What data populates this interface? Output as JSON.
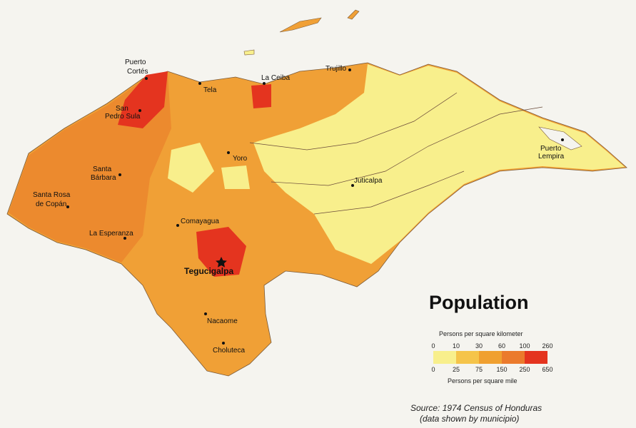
{
  "map": {
    "title": "Population",
    "cities": [
      {
        "lines": [
          "Puerto",
          "Cortés"
        ]
      },
      {
        "lines": [
          "Tela"
        ]
      },
      {
        "lines": [
          "La Ceiba"
        ]
      },
      {
        "lines": [
          "Trujillo"
        ]
      },
      {
        "lines": [
          "San",
          "Pedro Sula"
        ]
      },
      {
        "lines": [
          "Yoro"
        ]
      },
      {
        "lines": [
          "Santa",
          "Bárbara"
        ]
      },
      {
        "lines": [
          "Santa Rosa",
          "de Copán"
        ]
      },
      {
        "lines": [
          "Juticalpa"
        ]
      },
      {
        "lines": [
          "Puerto",
          "Lempira"
        ]
      },
      {
        "lines": [
          "Comayagua"
        ]
      },
      {
        "lines": [
          "La Esperanza"
        ]
      },
      {
        "lines": [
          "Tegucigalpa"
        ]
      },
      {
        "lines": [
          "Nacaome"
        ]
      },
      {
        "lines": [
          "Choluteca"
        ]
      }
    ]
  },
  "legend": {
    "km_label": "Persons per square kilometer",
    "km_ticks": [
      0,
      10,
      30,
      60,
      100,
      260
    ],
    "mile_label": "Persons per square mile",
    "mile_ticks": [
      0,
      25,
      75,
      150,
      250,
      650
    ],
    "colors": [
      "#f8ef8c",
      "#f5c44a",
      "#f0a030",
      "#eb7a2c",
      "#e4341f"
    ]
  },
  "source": [
    "Source: 1974 Census of Honduras",
    "(data shown by municipio)"
  ]
}
